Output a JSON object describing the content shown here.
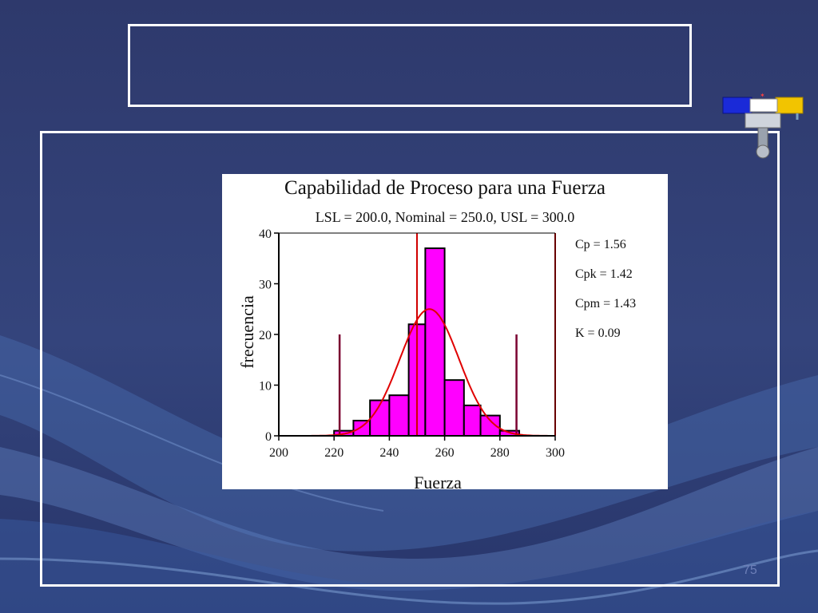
{
  "slide": {
    "title": "",
    "page_number": "75"
  },
  "logo": {
    "name": "piston-engine-logo"
  },
  "colors": {
    "background": "#2f3a6e",
    "bar_fill": "#ff00ff",
    "bar_stroke": "#000000",
    "curve": "#e00000",
    "limit_lines": "#d00000",
    "spec_markers": "#7a0030"
  },
  "chart_data": {
    "type": "bar",
    "title": "Capabilidad de Proceso para una Fuerza",
    "subtitle": "LSL = 200.0, Nominal = 250.0, USL = 300.0",
    "xlabel": "Fuerza",
    "ylabel": "frecuencia",
    "xlim": [
      200,
      300
    ],
    "ylim": [
      0,
      40
    ],
    "x_ticks": [
      "200",
      "220",
      "240",
      "260",
      "280",
      "300"
    ],
    "y_ticks": [
      "0",
      "10",
      "20",
      "30",
      "40"
    ],
    "bins": [
      {
        "start": 220,
        "end": 227,
        "value": 1
      },
      {
        "start": 227,
        "end": 233,
        "value": 3
      },
      {
        "start": 233,
        "end": 240,
        "value": 7
      },
      {
        "start": 240,
        "end": 247,
        "value": 8
      },
      {
        "start": 247,
        "end": 253,
        "value": 22
      },
      {
        "start": 253,
        "end": 260,
        "value": 37
      },
      {
        "start": 260,
        "end": 267,
        "value": 11
      },
      {
        "start": 267,
        "end": 273,
        "value": 6
      },
      {
        "start": 273,
        "end": 280,
        "value": 4
      },
      {
        "start": 280,
        "end": 287,
        "value": 1
      }
    ],
    "fitted_normal": {
      "mean": 254.5,
      "std": 10.7,
      "peak": 25
    },
    "spec_lines": [
      {
        "name": "LSL",
        "x": 200
      },
      {
        "name": "Nominal",
        "x": 250
      },
      {
        "name": "USL",
        "x": 300
      }
    ],
    "marker_lines": [
      {
        "x": 222,
        "height": 20
      },
      {
        "x": 286,
        "height": 20
      }
    ],
    "stats": [
      {
        "label": "Cp = 1.56"
      },
      {
        "label": "Cpk = 1.42"
      },
      {
        "label": "Cpm = 1.43"
      },
      {
        "label": "K = 0.09"
      }
    ],
    "grid": false
  }
}
